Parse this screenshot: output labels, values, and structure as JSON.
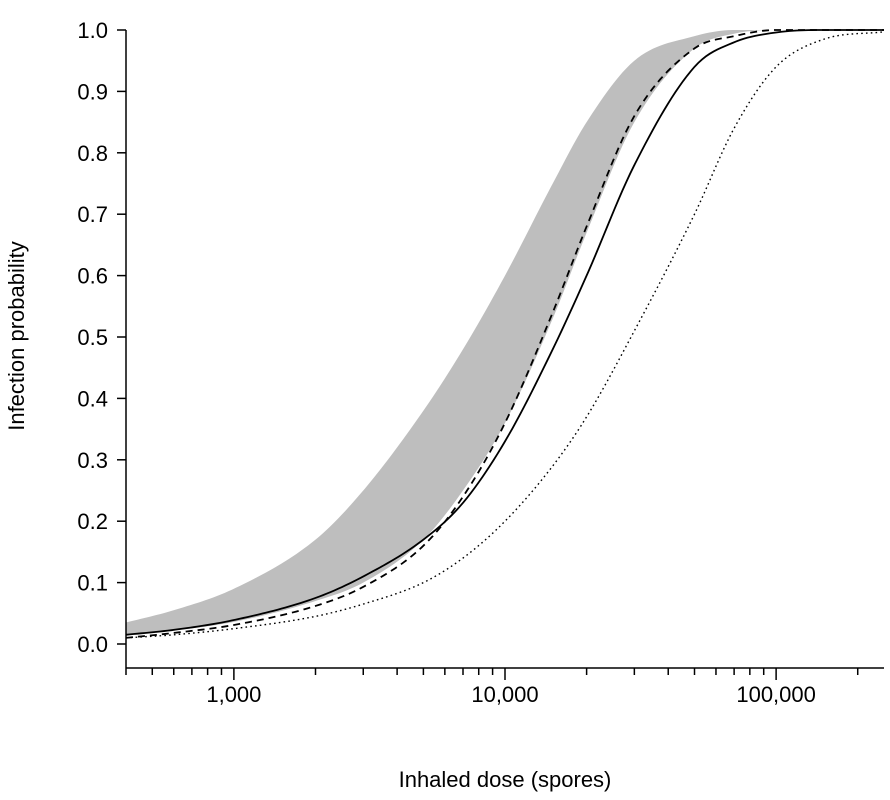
{
  "chart_data": {
    "type": "line",
    "xlabel": "Inhaled dose (spores)",
    "ylabel": "Infection probability",
    "x_scale": "log",
    "xlim": [
      400,
      250000
    ],
    "ylim": [
      0,
      1
    ],
    "x_major_ticks": [
      1000,
      10000,
      100000
    ],
    "x_tick_labels": [
      "1,000",
      "10,000",
      "100,000"
    ],
    "y_ticks": [
      0.0,
      0.1,
      0.2,
      0.3,
      0.4,
      0.5,
      0.6,
      0.7,
      0.8,
      0.9,
      1.0
    ],
    "y_tick_labels": [
      "0.0",
      "0.1",
      "0.2",
      "0.3",
      "0.4",
      "0.5",
      "0.6",
      "0.7",
      "0.8",
      "0.9",
      "1.0"
    ],
    "band": {
      "color": "#bebebe",
      "x": [
        400,
        600,
        1000,
        2000,
        3000,
        5000,
        7000,
        10000,
        15000,
        20000,
        30000,
        50000,
        70000,
        100000,
        150000,
        250000
      ],
      "lower": [
        0.015,
        0.022,
        0.036,
        0.07,
        0.1,
        0.17,
        0.25,
        0.36,
        0.53,
        0.67,
        0.85,
        0.97,
        0.994,
        1.0,
        1.0,
        1.0
      ],
      "upper": [
        0.035,
        0.055,
        0.09,
        0.17,
        0.25,
        0.38,
        0.48,
        0.6,
        0.75,
        0.85,
        0.95,
        0.99,
        1.0,
        1.0,
        1.0,
        1.0
      ]
    },
    "series": [
      {
        "style": "dashed",
        "color": "#000000",
        "x": [
          400,
          600,
          1000,
          2000,
          3000,
          5000,
          7000,
          10000,
          15000,
          20000,
          30000,
          50000,
          70000,
          100000,
          150000,
          250000
        ],
        "values": [
          0.01,
          0.018,
          0.031,
          0.062,
          0.093,
          0.16,
          0.24,
          0.36,
          0.54,
          0.68,
          0.86,
          0.97,
          0.99,
          1.0,
          1.0,
          1.0
        ]
      },
      {
        "style": "solid",
        "color": "#000000",
        "x": [
          400,
          600,
          1000,
          2000,
          3000,
          5000,
          7000,
          10000,
          15000,
          20000,
          30000,
          50000,
          70000,
          100000,
          150000,
          250000
        ],
        "values": [
          0.015,
          0.023,
          0.039,
          0.075,
          0.11,
          0.17,
          0.23,
          0.33,
          0.48,
          0.6,
          0.78,
          0.94,
          0.98,
          0.996,
          1.0,
          1.0
        ]
      },
      {
        "style": "dotted",
        "color": "#000000",
        "x": [
          400,
          600,
          1000,
          2000,
          3000,
          5000,
          7000,
          10000,
          15000,
          20000,
          30000,
          50000,
          70000,
          100000,
          150000,
          250000
        ],
        "values": [
          0.01,
          0.015,
          0.025,
          0.045,
          0.065,
          0.1,
          0.14,
          0.2,
          0.29,
          0.37,
          0.51,
          0.7,
          0.84,
          0.94,
          0.985,
          0.997
        ]
      }
    ]
  }
}
